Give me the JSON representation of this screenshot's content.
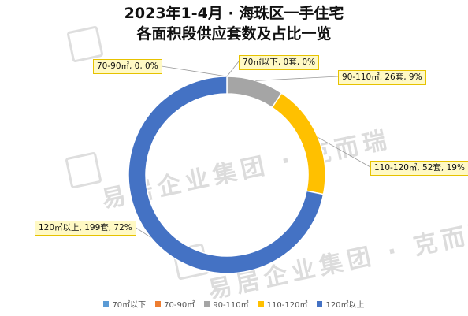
{
  "chart_data": {
    "type": "pie",
    "title_line1": "2023年1-4月 · 海珠区一手住宅",
    "title_line2": "各面积段供应套数及占比一览",
    "series": [
      {
        "name": "70㎡以下",
        "value": 0,
        "percent": "0%",
        "color": "#5b9bd5",
        "label": "70㎡以下, 0套, 0%"
      },
      {
        "name": "70-90㎡",
        "value": 0,
        "percent": "0%",
        "color": "#ed7d31",
        "label": "70-90㎡, 0, 0%"
      },
      {
        "name": "90-110㎡",
        "value": 26,
        "percent": "9%",
        "color": "#a5a5a5",
        "label": "90-110㎡, 26套, 9%"
      },
      {
        "name": "110-120㎡",
        "value": 52,
        "percent": "19%",
        "color": "#ffc000",
        "label": "110-120㎡, 52套, 19%"
      },
      {
        "name": "120㎡以上",
        "value": 199,
        "percent": "72%",
        "color": "#4472c4",
        "label": "120㎡以上, 199套, 72%"
      }
    ],
    "legend_position": "bottom"
  },
  "watermark": {
    "text": "易居企业集团 · 克而瑞"
  }
}
